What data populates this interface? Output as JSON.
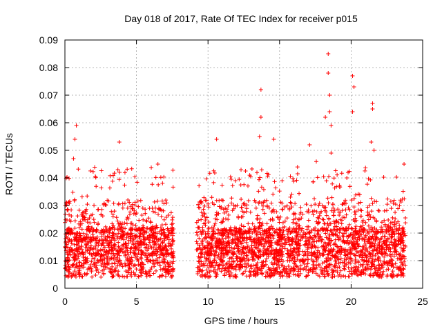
{
  "chart_data": {
    "type": "scatter",
    "title": "Day 018 of 2017, Rate Of TEC Index for receiver p015",
    "xlabel": "GPS time / hours",
    "ylabel": "ROTI / TECUs",
    "xlim": [
      0,
      25
    ],
    "ylim": [
      0,
      0.09
    ],
    "x_ticks": [
      "0",
      "5",
      "10",
      "15",
      "20",
      "25"
    ],
    "y_ticks": [
      "0",
      "0.01",
      "0.02",
      "0.03",
      "0.04",
      "0.05",
      "0.06",
      "0.07",
      "0.08",
      "0.09"
    ],
    "x_tick_values": [
      0,
      5,
      10,
      15,
      20,
      25
    ],
    "y_tick_values": [
      0,
      0.01,
      0.02,
      0.03,
      0.04,
      0.05,
      0.06,
      0.07,
      0.08,
      0.09
    ],
    "grid": true,
    "marker": "+",
    "marker_color": "#ff0000",
    "series": [
      {
        "name": "ROTI",
        "segments": [
          {
            "x_start": 0.0,
            "x_end": 7.6
          },
          {
            "x_start": 9.2,
            "x_end": 23.8
          }
        ],
        "notable_points": [
          {
            "x": 0.8,
            "y": 0.059
          },
          {
            "x": 0.7,
            "y": 0.054
          },
          {
            "x": 0.6,
            "y": 0.047
          },
          {
            "x": 3.8,
            "y": 0.053
          },
          {
            "x": 3.7,
            "y": 0.043
          },
          {
            "x": 6.5,
            "y": 0.045
          },
          {
            "x": 10.6,
            "y": 0.054
          },
          {
            "x": 13.7,
            "y": 0.072
          },
          {
            "x": 13.7,
            "y": 0.062
          },
          {
            "x": 13.6,
            "y": 0.055
          },
          {
            "x": 14.6,
            "y": 0.054
          },
          {
            "x": 17.1,
            "y": 0.052
          },
          {
            "x": 18.2,
            "y": 0.062
          },
          {
            "x": 18.4,
            "y": 0.085
          },
          {
            "x": 18.4,
            "y": 0.078
          },
          {
            "x": 18.5,
            "y": 0.07
          },
          {
            "x": 18.5,
            "y": 0.064
          },
          {
            "x": 18.6,
            "y": 0.059
          },
          {
            "x": 18.6,
            "y": 0.049
          },
          {
            "x": 20.1,
            "y": 0.077
          },
          {
            "x": 20.2,
            "y": 0.073
          },
          {
            "x": 20.1,
            "y": 0.064
          },
          {
            "x": 21.5,
            "y": 0.067
          },
          {
            "x": 21.5,
            "y": 0.065
          },
          {
            "x": 21.4,
            "y": 0.053
          },
          {
            "x": 21.6,
            "y": 0.05
          },
          {
            "x": 23.7,
            "y": 0.045
          }
        ]
      }
    ]
  },
  "colors": {
    "marker": "#ff0000",
    "grid": "#a0a0a0",
    "frame": "#000000"
  }
}
